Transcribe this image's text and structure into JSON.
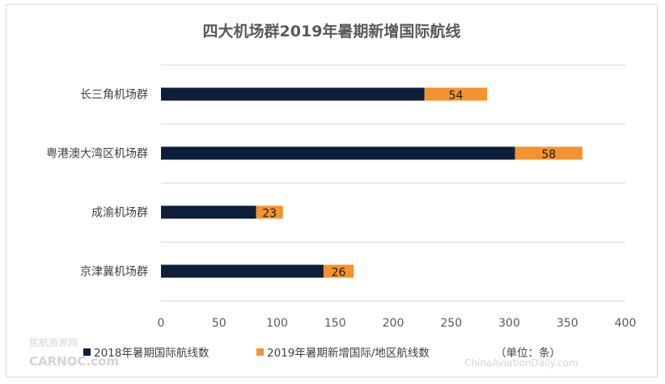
{
  "chart_data": {
    "type": "bar",
    "orientation": "horizontal",
    "stacked": true,
    "title": "四大机场群2019年暑期新增国际航线",
    "categories": [
      "长三角机场群",
      "粤港澳大湾区机场群",
      "成渝机场群",
      "京津冀机场群"
    ],
    "series": [
      {
        "name": "2018年暑期国际航线数",
        "color": "#0d1f3a",
        "values": [
          227,
          305,
          82,
          140
        ]
      },
      {
        "name": "2019年暑期新增国际/地区航线数",
        "color": "#f5922d",
        "values": [
          54,
          58,
          23,
          26
        ]
      }
    ],
    "data_labels_series": 1,
    "xlim": [
      0,
      400
    ],
    "xticks": [
      0,
      50,
      100,
      150,
      200,
      250,
      300,
      350,
      400
    ],
    "grid": "horizontal-separators",
    "legend": "bottom",
    "unit_note": "（单位：条）"
  },
  "watermark": {
    "left_cn": "民航资源网",
    "left_en": "CARNOC.com",
    "right": "ChinaAviationDaily.com"
  }
}
